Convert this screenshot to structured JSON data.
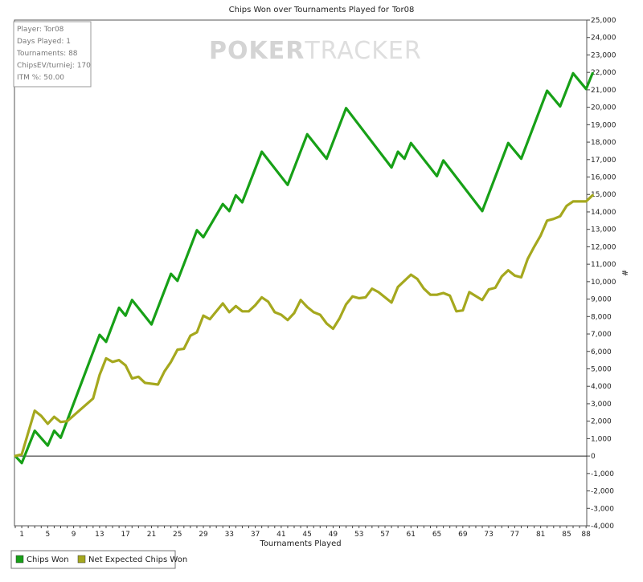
{
  "chart_data": {
    "type": "line",
    "title_prefix": "Chips Won over Tournaments Played for",
    "player_name": "Tor08",
    "watermark": {
      "part1": "POKER",
      "part2": "TRACKER"
    },
    "xlabel": "Tournaments Played",
    "ylabel_right": "#",
    "xlim": [
      0,
      88
    ],
    "ylim": [
      -4000,
      25000
    ],
    "x_ticks": [
      1,
      5,
      9,
      13,
      17,
      21,
      25,
      29,
      33,
      37,
      41,
      45,
      49,
      53,
      57,
      61,
      65,
      69,
      73,
      77,
      81,
      85,
      88
    ],
    "y_ticks": [
      "-4,000",
      "-3,000",
      "-2,000",
      "-1,000",
      "0",
      "1,000",
      "2,000",
      "3,000",
      "4,000",
      "5,000",
      "6,000",
      "7,000",
      "8,000",
      "9,000",
      "10,000",
      "11,000",
      "12,000",
      "13,000",
      "14,000",
      "15,000",
      "16,000",
      "17,000",
      "18,000",
      "19,000",
      "20,000",
      "21,000",
      "22,000",
      "23,000",
      "24,000",
      "25,000"
    ],
    "y_tick_values": [
      -4000,
      -3000,
      -2000,
      -1000,
      0,
      1000,
      2000,
      3000,
      4000,
      5000,
      6000,
      7000,
      8000,
      9000,
      10000,
      11000,
      12000,
      13000,
      14000,
      15000,
      16000,
      17000,
      18000,
      19000,
      20000,
      21000,
      22000,
      23000,
      24000,
      25000
    ],
    "grid": false,
    "legend_position": "bottom-left",
    "info_box": [
      {
        "label": "Player",
        "value": "Tor08"
      },
      {
        "label": "Days Played",
        "value": "1"
      },
      {
        "label": "Tournaments",
        "value": "88"
      },
      {
        "label": "ChipsEV/turniej",
        "value": "170"
      },
      {
        "label": "ITM %",
        "value": "50.00"
      }
    ],
    "series": [
      {
        "name": "Chips Won",
        "color": "#17a017",
        "points": [
          [
            0,
            0
          ],
          [
            1,
            -400
          ],
          [
            3,
            1450
          ],
          [
            5,
            600
          ],
          [
            6,
            1450
          ],
          [
            7,
            1050
          ],
          [
            13,
            6950
          ],
          [
            14,
            6550
          ],
          [
            16,
            8500
          ],
          [
            17,
            8050
          ],
          [
            18,
            8950
          ],
          [
            21,
            7550
          ],
          [
            24,
            10450
          ],
          [
            25,
            10050
          ],
          [
            28,
            12950
          ],
          [
            29,
            12550
          ],
          [
            32,
            14450
          ],
          [
            33,
            14050
          ],
          [
            34,
            14950
          ],
          [
            35,
            14550
          ],
          [
            38,
            17450
          ],
          [
            42,
            15550
          ],
          [
            45,
            18450
          ],
          [
            48,
            17050
          ],
          [
            51,
            19950
          ],
          [
            58,
            16550
          ],
          [
            59,
            17450
          ],
          [
            60,
            17050
          ],
          [
            61,
            17950
          ],
          [
            65,
            16050
          ],
          [
            66,
            16950
          ],
          [
            72,
            14050
          ],
          [
            76,
            17950
          ],
          [
            78,
            17050
          ],
          [
            82,
            20950
          ],
          [
            84,
            20050
          ],
          [
            86,
            21950
          ],
          [
            88,
            21050
          ],
          [
            89,
            21950
          ]
        ]
      },
      {
        "name": "Net Expected Chips Won",
        "color": "#a5a81e",
        "points": [
          [
            0,
            0
          ],
          [
            1,
            100
          ],
          [
            3,
            2600
          ],
          [
            4,
            2300
          ],
          [
            5,
            1850
          ],
          [
            6,
            2250
          ],
          [
            7,
            1950
          ],
          [
            8,
            2000
          ],
          [
            12,
            3300
          ],
          [
            13,
            4650
          ],
          [
            14,
            5600
          ],
          [
            15,
            5400
          ],
          [
            16,
            5500
          ],
          [
            17,
            5200
          ],
          [
            18,
            4450
          ],
          [
            19,
            4550
          ],
          [
            20,
            4200
          ],
          [
            22,
            4100
          ],
          [
            23,
            4850
          ],
          [
            24,
            5400
          ],
          [
            25,
            6100
          ],
          [
            26,
            6150
          ],
          [
            27,
            6900
          ],
          [
            28,
            7100
          ],
          [
            29,
            8050
          ],
          [
            30,
            7850
          ],
          [
            32,
            8750
          ],
          [
            33,
            8250
          ],
          [
            34,
            8600
          ],
          [
            35,
            8300
          ],
          [
            36,
            8300
          ],
          [
            37,
            8650
          ],
          [
            38,
            9100
          ],
          [
            39,
            8850
          ],
          [
            40,
            8250
          ],
          [
            41,
            8100
          ],
          [
            42,
            7800
          ],
          [
            43,
            8200
          ],
          [
            44,
            8950
          ],
          [
            45,
            8550
          ],
          [
            46,
            8250
          ],
          [
            47,
            8100
          ],
          [
            48,
            7600
          ],
          [
            49,
            7300
          ],
          [
            50,
            7900
          ],
          [
            51,
            8700
          ],
          [
            52,
            9150
          ],
          [
            53,
            9050
          ],
          [
            54,
            9100
          ],
          [
            55,
            9600
          ],
          [
            56,
            9400
          ],
          [
            58,
            8800
          ],
          [
            59,
            9700
          ],
          [
            61,
            10400
          ],
          [
            62,
            10150
          ],
          [
            63,
            9600
          ],
          [
            64,
            9250
          ],
          [
            65,
            9250
          ],
          [
            66,
            9350
          ],
          [
            67,
            9200
          ],
          [
            68,
            8300
          ],
          [
            69,
            8350
          ],
          [
            70,
            9400
          ],
          [
            72,
            8950
          ],
          [
            73,
            9550
          ],
          [
            74,
            9650
          ],
          [
            75,
            10300
          ],
          [
            76,
            10650
          ],
          [
            77,
            10350
          ],
          [
            78,
            10250
          ],
          [
            79,
            11300
          ],
          [
            80,
            12000
          ],
          [
            81,
            12650
          ],
          [
            82,
            13500
          ],
          [
            83,
            13600
          ],
          [
            84,
            13750
          ],
          [
            85,
            14350
          ],
          [
            86,
            14600
          ],
          [
            88,
            14600
          ],
          [
            89,
            14950
          ]
        ]
      }
    ]
  }
}
